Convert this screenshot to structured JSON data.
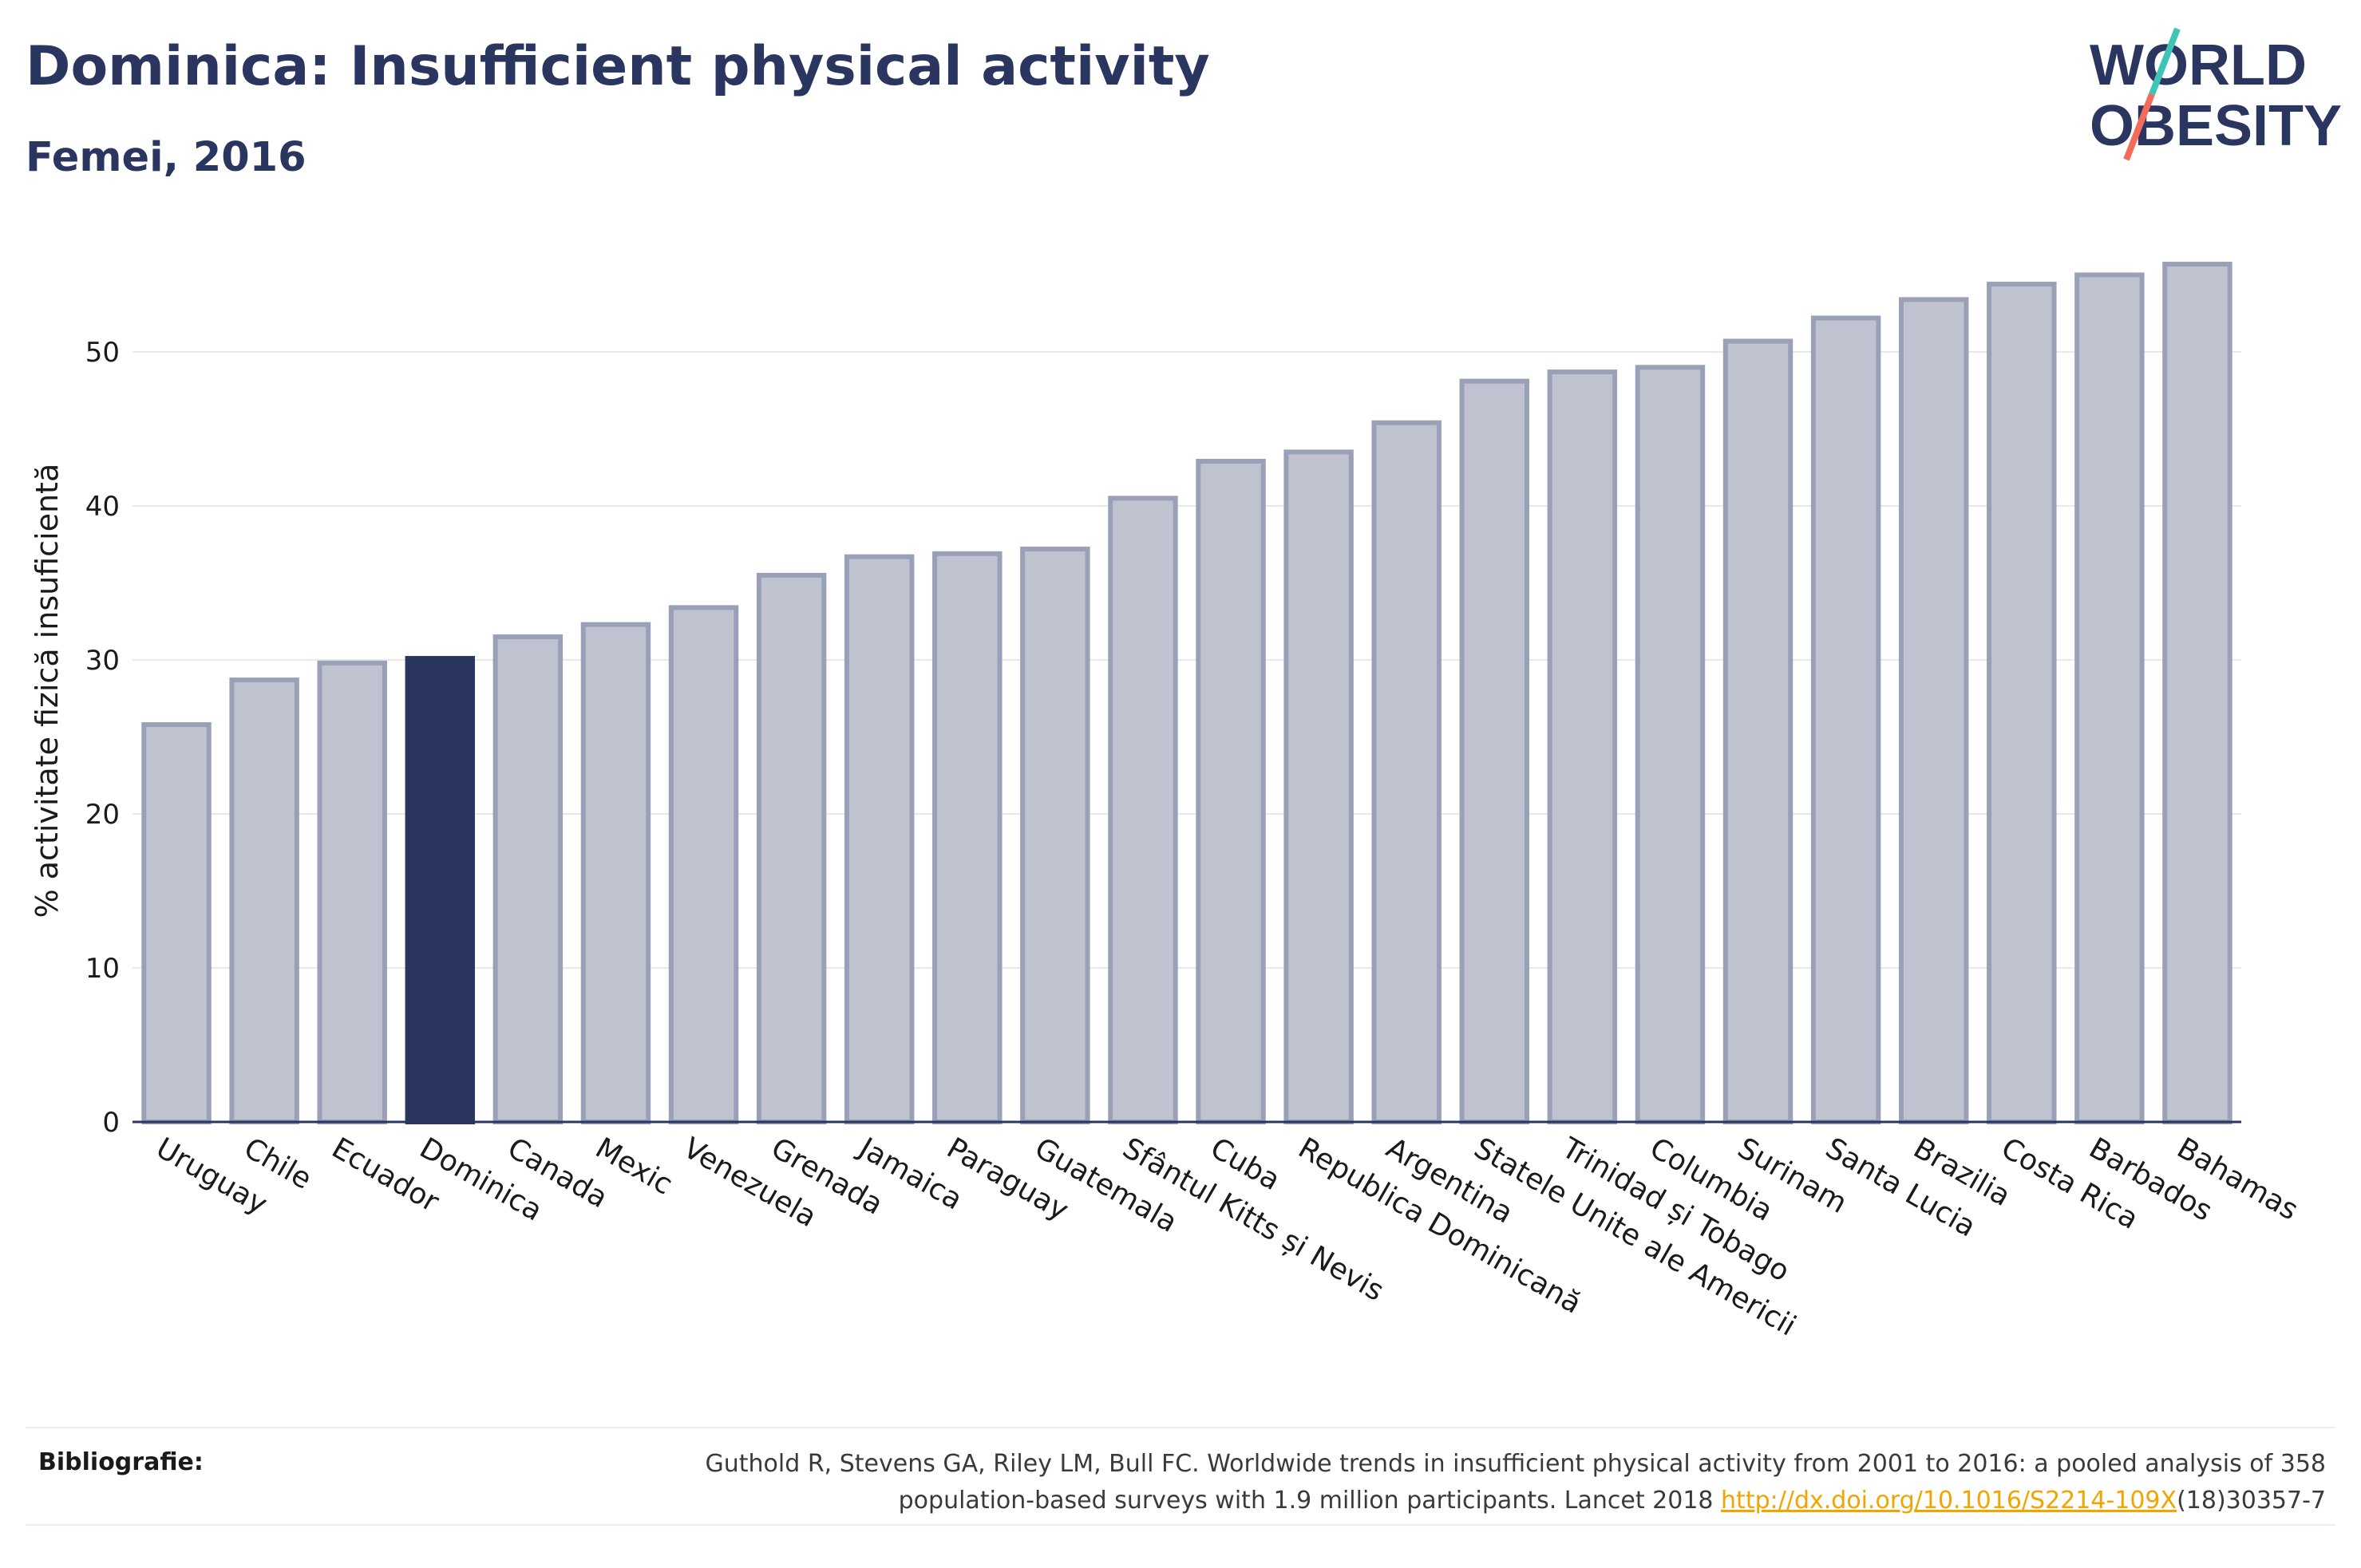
{
  "header": {
    "title": "Dominica: Insufficient physical activity",
    "subtitle": "Femei, 2016"
  },
  "logo": {
    "line1": "WORLD",
    "line2": "OBESITY",
    "colors": {
      "text": "#2a3560",
      "slash_teal": "#3fc4b8",
      "slash_coral": "#f26b5b"
    }
  },
  "chart_data": {
    "type": "bar",
    "title": "Dominica: Insufficient physical activity",
    "subtitle": "Femei, 2016",
    "xlabel": "",
    "ylabel": "% activitate fizică insuficientă",
    "ylim": [
      0,
      58
    ],
    "yticks": [
      0,
      10,
      20,
      30,
      40,
      50
    ],
    "grid": true,
    "highlight": "Dominica",
    "colors": {
      "bar": "#bfc3cf",
      "bar_border": "#9aa0b8",
      "highlight": "#2a3560",
      "grid": "#e8e8e8",
      "axis": "#2a3560"
    },
    "categories": [
      "Uruguay",
      "Chile",
      "Ecuador",
      "Dominica",
      "Canada",
      "Mexic",
      "Venezuela",
      "Grenada",
      "Jamaica",
      "Paraguay",
      "Guatemala",
      "Sfântul Kitts și Nevis",
      "Cuba",
      "Republica Dominicană",
      "Argentina",
      "Statele Unite ale Americii",
      "Trinidad și Tobago",
      "Columbia",
      "Surinam",
      "Santa Lucia",
      "Brazilia",
      "Costa Rica",
      "Barbados",
      "Bahamas"
    ],
    "values": [
      25.8,
      28.7,
      29.8,
      30.1,
      31.5,
      32.3,
      33.4,
      35.5,
      36.7,
      36.9,
      37.2,
      40.5,
      42.9,
      43.5,
      45.4,
      48.1,
      48.7,
      49.0,
      50.7,
      52.2,
      53.4,
      54.4,
      55.0,
      55.7
    ]
  },
  "footer": {
    "label": "Bibliografie:",
    "text_line1": "Guthold R, Stevens GA, Riley LM, Bull FC. Worldwide trends in insufficient physical activity from 2001 to 2016: a pooled analysis of 358",
    "text_line2_pre": "population-based surveys with 1.9 million participants. Lancet 2018 ",
    "link": "http://dx.doi.org/10.1016/S2214-109X",
    "text_line2_post": "(18)30357-7"
  }
}
